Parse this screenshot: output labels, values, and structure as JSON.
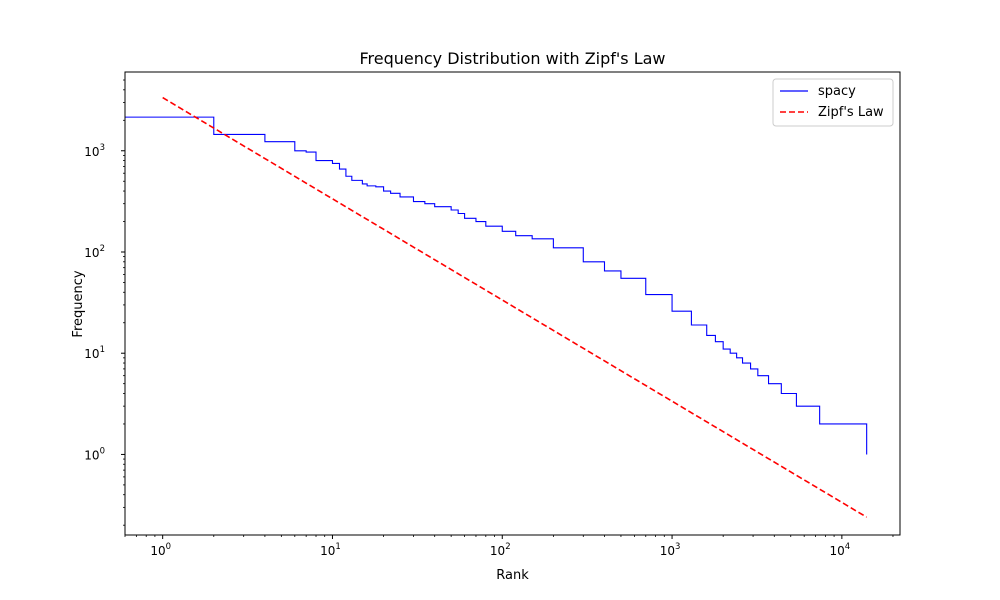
{
  "chart_data": {
    "type": "line",
    "title": "Frequency Distribution with Zipf's Law",
    "xlabel": "Rank",
    "ylabel": "Frequency",
    "xscale": "log",
    "yscale": "log",
    "xlim": [
      0.6,
      22000
    ],
    "ylim": [
      0.16,
      6000
    ],
    "x_ticks": [
      {
        "value": 1,
        "base": "10",
        "exp": "0"
      },
      {
        "value": 10,
        "base": "10",
        "exp": "1"
      },
      {
        "value": 100,
        "base": "10",
        "exp": "2"
      },
      {
        "value": 1000,
        "base": "10",
        "exp": "3"
      },
      {
        "value": 10000,
        "base": "10",
        "exp": "4"
      }
    ],
    "y_ticks": [
      {
        "value": 1,
        "base": "10",
        "exp": "0"
      },
      {
        "value": 10,
        "base": "10",
        "exp": "1"
      },
      {
        "value": 100,
        "base": "10",
        "exp": "2"
      },
      {
        "value": 1000,
        "base": "10",
        "exp": "3"
      }
    ],
    "grid": false,
    "legend_position": "top-right",
    "series": [
      {
        "name": "spacy",
        "color": "#0000ff",
        "style": "solid",
        "step": true,
        "points": [
          [
            0.6,
            2150
          ],
          [
            1,
            2150
          ],
          [
            2,
            1450
          ],
          [
            4,
            1230
          ],
          [
            6,
            1000
          ],
          [
            7,
            970
          ],
          [
            8,
            800
          ],
          [
            10,
            750
          ],
          [
            11,
            660
          ],
          [
            12,
            560
          ],
          [
            13,
            510
          ],
          [
            15,
            470
          ],
          [
            16,
            450
          ],
          [
            18,
            440
          ],
          [
            20,
            400
          ],
          [
            22,
            380
          ],
          [
            25,
            350
          ],
          [
            30,
            315
          ],
          [
            35,
            300
          ],
          [
            40,
            280
          ],
          [
            50,
            260
          ],
          [
            55,
            240
          ],
          [
            60,
            215
          ],
          [
            70,
            200
          ],
          [
            80,
            180
          ],
          [
            100,
            160
          ],
          [
            120,
            145
          ],
          [
            150,
            135
          ],
          [
            200,
            110
          ],
          [
            300,
            80
          ],
          [
            400,
            65
          ],
          [
            500,
            55
          ],
          [
            700,
            38
          ],
          [
            1000,
            26
          ],
          [
            1300,
            19
          ],
          [
            1600,
            15
          ],
          [
            1800,
            13
          ],
          [
            2000,
            11
          ],
          [
            2200,
            10
          ],
          [
            2400,
            9
          ],
          [
            2600,
            8
          ],
          [
            2900,
            7
          ],
          [
            3200,
            6
          ],
          [
            3700,
            5
          ],
          [
            4400,
            4
          ],
          [
            5400,
            3
          ],
          [
            7400,
            2
          ],
          [
            14000,
            1
          ]
        ]
      },
      {
        "name": "Zipf's Law",
        "color": "#ff0000",
        "style": "dashed",
        "step": false,
        "points": [
          [
            1,
            3350
          ],
          [
            14000,
            0.24
          ]
        ]
      }
    ]
  }
}
